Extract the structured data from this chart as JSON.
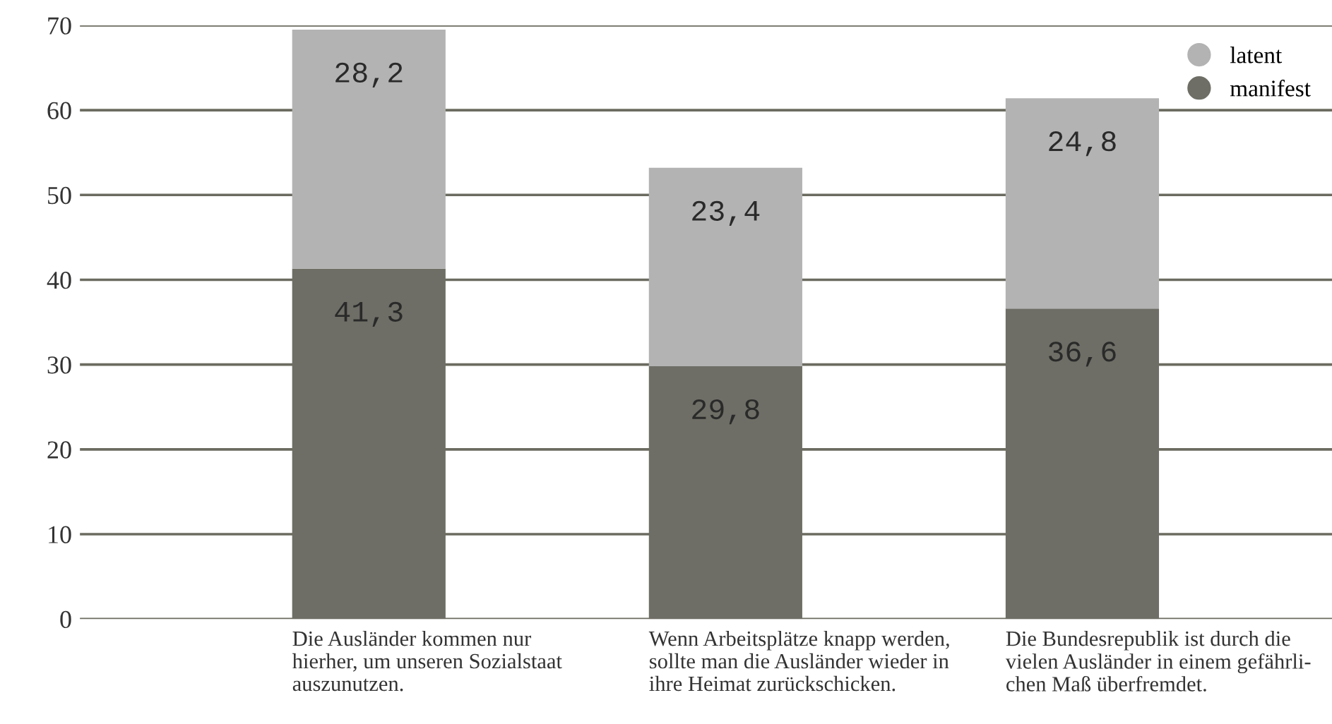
{
  "chart_data": {
    "type": "bar",
    "stacked": true,
    "categories": [
      "Die Ausländer kommen nur\nhierher, um unseren Sozialstaat\nauszunutzen.",
      "Wenn Arbeitsplätze knapp werden,\nsollte man die Ausländer wieder in\nihre Heimat zurückschicken.",
      "Die Bundesrepublik ist durch die\nvielen Ausländer in einem gefährli-\nchen Maß überfremdet."
    ],
    "series": [
      {
        "name": "manifest",
        "color": "#6e6e66",
        "values": [
          41.3,
          29.8,
          36.6
        ],
        "value_labels": [
          "41,3",
          "29,8",
          "36,6"
        ]
      },
      {
        "name": "latent",
        "color": "#b3b3b3",
        "values": [
          28.2,
          23.4,
          24.8
        ],
        "value_labels": [
          "28,2",
          "23,4",
          "24,8"
        ]
      }
    ],
    "ylim": [
      0,
      70
    ],
    "yticks": [
      0,
      10,
      20,
      30,
      40,
      50,
      60,
      70
    ],
    "grid": "y",
    "legend": "top right"
  }
}
